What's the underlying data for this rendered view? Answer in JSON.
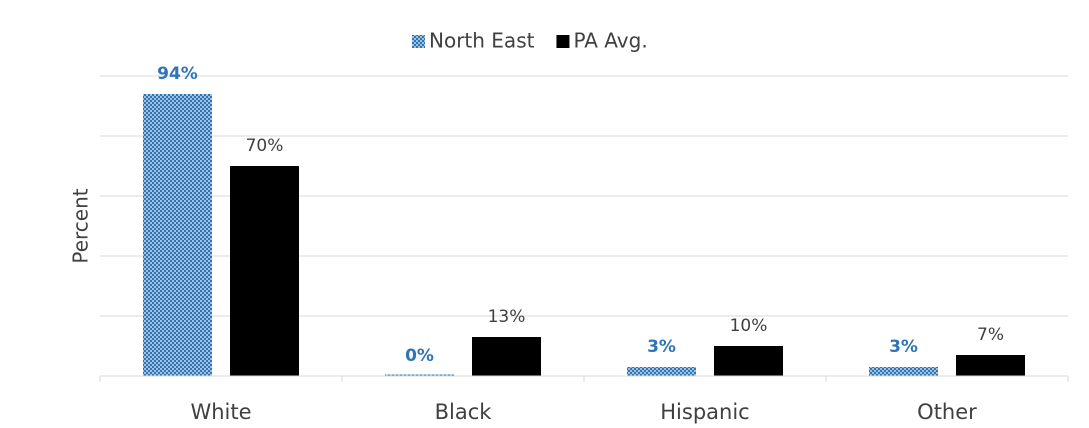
{
  "chart_data": {
    "type": "bar",
    "y_label": "Percent",
    "categories": [
      "White",
      "Black",
      "Hispanic",
      "Other"
    ],
    "series": [
      {
        "name": "North East",
        "color": "#2e75b6",
        "values": [
          94,
          0,
          3,
          3
        ],
        "value_labels": [
          "94%",
          "0%",
          "3%",
          "3%"
        ]
      },
      {
        "name": "PA Avg.",
        "color": "#000000",
        "values": [
          70,
          13,
          10,
          7
        ],
        "value_labels": [
          "70%",
          "13%",
          "10%",
          "7%"
        ]
      }
    ],
    "ylim": [
      0,
      100
    ],
    "yticks": [
      0,
      20,
      40,
      60,
      80,
      100
    ],
    "grid": true,
    "legend": "top"
  }
}
